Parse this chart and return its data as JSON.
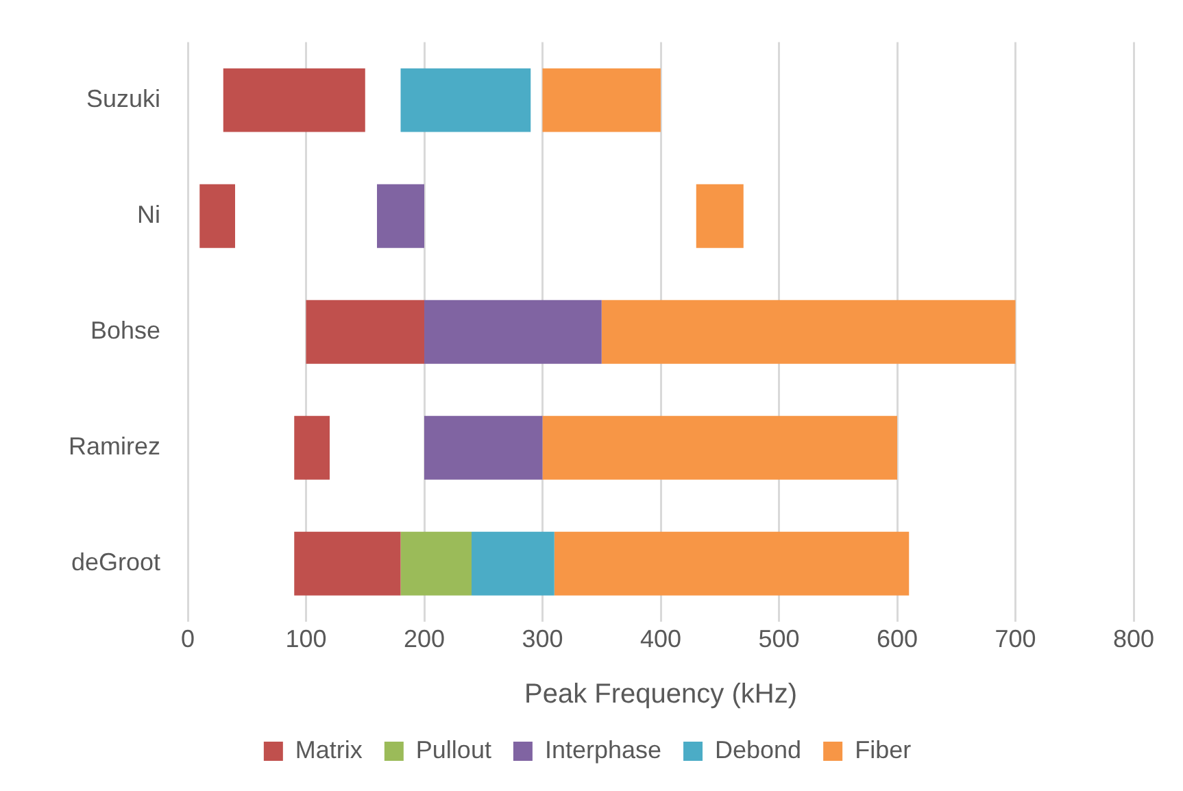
{
  "chart_data": {
    "type": "bar",
    "orientation": "horizontal",
    "xlabel": "Peak Frequency (kHz)",
    "categories": [
      "Suzuki",
      "Ni",
      "Bohse",
      "Ramirez",
      "deGroot"
    ],
    "series": [
      {
        "name": "Matrix",
        "color": "#c0504d",
        "base": [
          30,
          10,
          100,
          90,
          90
        ],
        "values": [
          120,
          30,
          100,
          30,
          90
        ]
      },
      {
        "name": "Pullout",
        "color": "#9bbb59",
        "base": [
          null,
          null,
          null,
          null,
          180
        ],
        "values": [
          null,
          null,
          null,
          null,
          60
        ]
      },
      {
        "name": "Interphase",
        "color": "#8064a2",
        "base": [
          null,
          160,
          200,
          200,
          null
        ],
        "values": [
          null,
          40,
          150,
          100,
          null
        ]
      },
      {
        "name": "Debond",
        "color": "#4bacc6",
        "base": [
          180,
          null,
          null,
          null,
          240
        ],
        "values": [
          110,
          null,
          null,
          null,
          70
        ]
      },
      {
        "name": "Fiber",
        "color": "#f79646",
        "base": [
          300,
          430,
          350,
          300,
          310
        ],
        "values": [
          100,
          40,
          350,
          300,
          300
        ]
      }
    ],
    "xlim": [
      0,
      800
    ],
    "xticks": [
      0,
      100,
      200,
      300,
      400,
      500,
      600,
      700,
      800
    ],
    "grid": "x",
    "legend": "bottom"
  }
}
